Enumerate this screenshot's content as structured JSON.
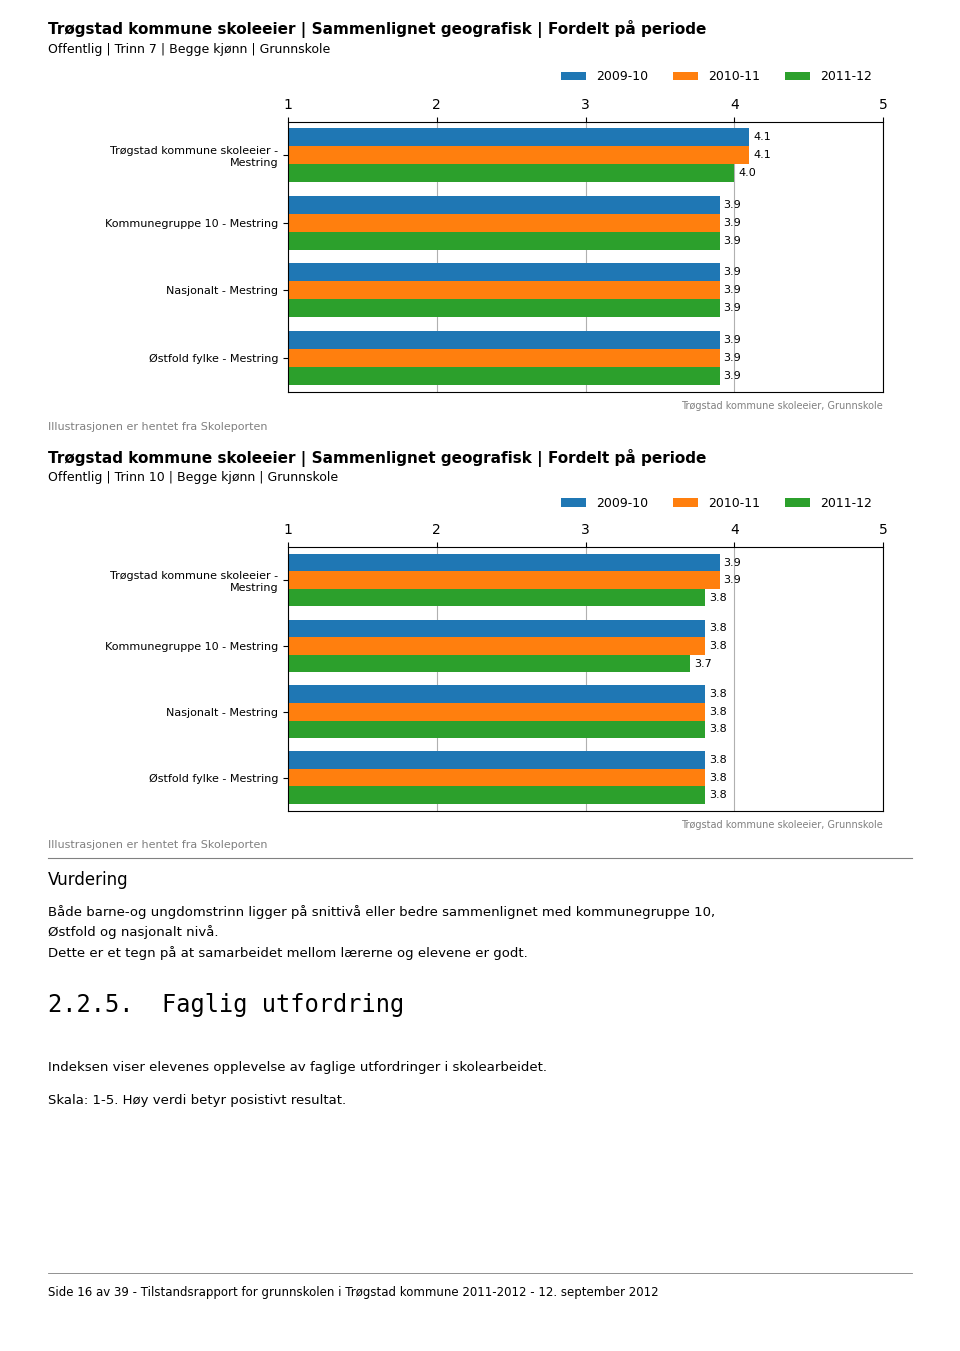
{
  "chart_data": [
    {
      "type": "bar",
      "orientation": "horizontal",
      "title": "Trøgstad kommune skoleeier | Sammenlignet geografisk | Fordelt på periode",
      "subtitle": "Offentlig | Trinn 7 | Begge kjønn | Grunnskole",
      "categories": [
        "Trøgstad kommune skoleeier -\nMestring",
        "Kommunegruppe 10 - Mestring",
        "Nasjonalt - Mestring",
        "Østfold fylke - Mestring"
      ],
      "series": [
        {
          "name": "2009-10",
          "values": [
            4.1,
            3.9,
            3.9,
            3.9
          ]
        },
        {
          "name": "2010-11",
          "values": [
            4.1,
            3.9,
            3.9,
            3.9
          ]
        },
        {
          "name": "2011-12",
          "values": [
            4.0,
            3.9,
            3.9,
            3.9
          ]
        }
      ],
      "xlim": [
        1,
        5
      ],
      "xticks": [
        1,
        2,
        3,
        4,
        5
      ],
      "grid": true,
      "legend": "lower right",
      "data_labels": true,
      "annotations": [
        "Trøgstad kommune skoleeier, Grunnskole",
        "Illustrasjonen er hentet fra Skoleporten"
      ]
    },
    {
      "type": "bar",
      "orientation": "horizontal",
      "title": "Trøgstad kommune skoleeier | Sammenlignet geografisk | Fordelt på periode",
      "subtitle": "Offentlig | Trinn 10 | Begge kjønn | Grunnskole",
      "categories": [
        "Trøgstad kommune skoleeier -\nMestring",
        "Kommunegruppe 10 - Mestring",
        "Nasjonalt - Mestring",
        "Østfold fylke - Mestring"
      ],
      "series": [
        {
          "name": "2009-10",
          "values": [
            3.9,
            3.8,
            3.8,
            3.8
          ]
        },
        {
          "name": "2010-11",
          "values": [
            3.9,
            3.8,
            3.8,
            3.8
          ]
        },
        {
          "name": "2011-12",
          "values": [
            3.8,
            3.7,
            3.8,
            3.8
          ]
        }
      ],
      "xlim": [
        1,
        5
      ],
      "xticks": [
        1,
        2,
        3,
        4,
        5
      ],
      "grid": true,
      "legend": "lower right",
      "data_labels": true,
      "annotations": [
        "Trøgstad kommune skoleeier, Grunnskole",
        "Illustrasjonen er hentet fra Skoleporten"
      ]
    }
  ],
  "annotations": [
    "Vurdering",
    "Både barne-og ungdomstrinn ligger på snittivå eller bedre sammenlignet med kommunegruppe 10,",
    "Østfold og nasjonalt nivå.",
    "Dette er et tegn på at samarbeidet mellom lærerne og elevene er godt.",
    "2.2.5.  Faglig utfordring",
    "Indeksen viser elevenes opplevelse av faglige utfordringer i skolearbeidet.",
    "Skala: 1-5. Høy verdi betyr posistivt resultat.",
    "Side 16 av 39 - Tilstandsrapport for grunnskolen i Trøgstad kommune 2011-2012 - 12. september 2012"
  ]
}
